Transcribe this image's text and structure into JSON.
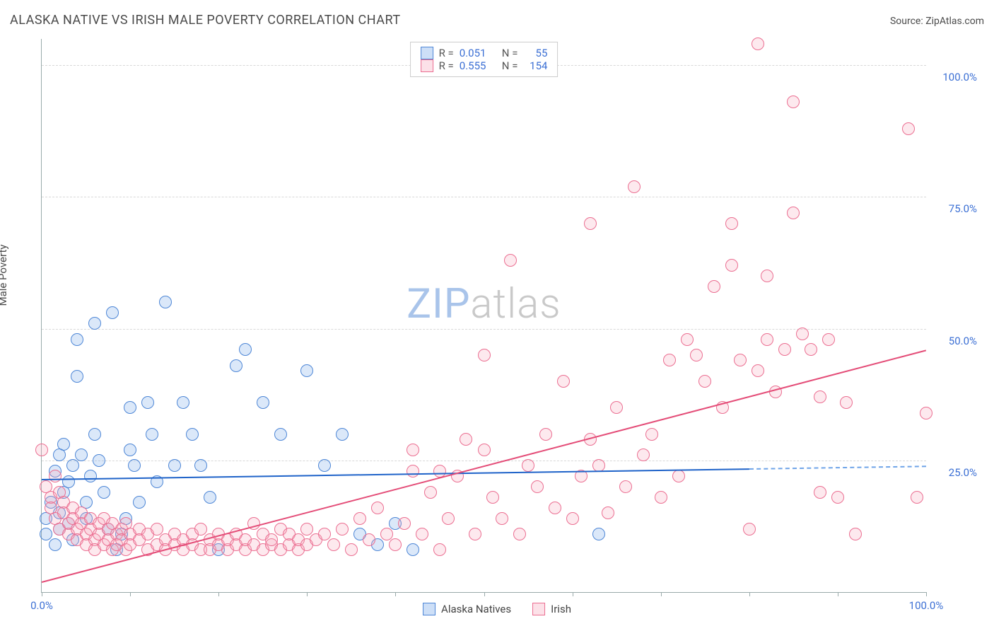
{
  "header": {
    "title": "ALASKA NATIVE VS IRISH MALE POVERTY CORRELATION CHART",
    "source_prefix": "Source: ",
    "source_name": "ZipAtlas.com"
  },
  "chart": {
    "type": "scatter",
    "ylabel": "Male Poverty",
    "background_color": "#ffffff",
    "grid_color": "#d8d8d8",
    "axis_color": "#99aaaa",
    "xlim": [
      0,
      100
    ],
    "ylim": [
      0,
      105
    ],
    "ytick_step": 25,
    "ytick_labels": [
      "25.0%",
      "50.0%",
      "75.0%",
      "100.0%"
    ],
    "ytick_values": [
      25,
      50,
      75,
      100
    ],
    "ytick_color": "#3b6fd4",
    "xtick_step": 10,
    "xtick_labels": {
      "0": "0.0%",
      "100": "100.0%"
    },
    "xtick_label_color": "#3b6fd4",
    "marker_radius": 9,
    "marker_stroke_width": 1.5,
    "marker_fill_opacity": 0.25,
    "series": [
      {
        "key": "alaska",
        "label": "Alaska Natives",
        "color": "#6fa4e8",
        "stroke": "#4d86d6",
        "trend": {
          "x1": 0,
          "y1": 21.5,
          "x2": 100,
          "y2": 24,
          "solid_to_x": 80,
          "color": "#1f63c9",
          "width": 2.5,
          "dash_color": "#6fa4e8"
        },
        "R": "0.051",
        "N": "55",
        "points": [
          [
            0.5,
            14
          ],
          [
            0.5,
            11
          ],
          [
            1,
            17
          ],
          [
            1.5,
            23
          ],
          [
            1.5,
            9
          ],
          [
            2,
            12
          ],
          [
            2,
            15
          ],
          [
            2,
            26
          ],
          [
            2.5,
            28
          ],
          [
            2.5,
            19
          ],
          [
            3,
            13
          ],
          [
            3,
            21
          ],
          [
            3.5,
            10
          ],
          [
            3.5,
            24
          ],
          [
            4,
            48
          ],
          [
            4,
            41
          ],
          [
            4.5,
            26
          ],
          [
            5,
            14
          ],
          [
            5,
            17
          ],
          [
            5.5,
            22
          ],
          [
            6,
            51
          ],
          [
            6,
            30
          ],
          [
            6.5,
            25
          ],
          [
            7,
            19
          ],
          [
            7.5,
            12
          ],
          [
            8,
            53
          ],
          [
            8.5,
            8
          ],
          [
            9,
            11
          ],
          [
            9.5,
            14
          ],
          [
            10,
            27
          ],
          [
            10,
            35
          ],
          [
            10.5,
            24
          ],
          [
            11,
            17
          ],
          [
            12,
            36
          ],
          [
            12.5,
            30
          ],
          [
            13,
            21
          ],
          [
            14,
            55
          ],
          [
            15,
            24
          ],
          [
            16,
            36
          ],
          [
            17,
            30
          ],
          [
            18,
            24
          ],
          [
            19,
            18
          ],
          [
            20,
            8
          ],
          [
            22,
            43
          ],
          [
            23,
            46
          ],
          [
            25,
            36
          ],
          [
            27,
            30
          ],
          [
            30,
            42
          ],
          [
            32,
            24
          ],
          [
            34,
            30
          ],
          [
            36,
            11
          ],
          [
            38,
            9
          ],
          [
            40,
            13
          ],
          [
            42,
            8
          ],
          [
            63,
            11
          ]
        ]
      },
      {
        "key": "irish",
        "label": "Irish",
        "color": "#f7a8bc",
        "stroke": "#eb6e91",
        "trend": {
          "x1": 0,
          "y1": 2,
          "x2": 100,
          "y2": 46,
          "solid_to_x": 100,
          "color": "#e44d78",
          "width": 2.5
        },
        "R": "0.555",
        "N": "154",
        "points": [
          [
            0,
            27
          ],
          [
            0.5,
            20
          ],
          [
            1,
            18
          ],
          [
            1,
            16
          ],
          [
            1.5,
            22
          ],
          [
            1.5,
            14
          ],
          [
            2,
            19
          ],
          [
            2,
            12
          ],
          [
            2.5,
            17
          ],
          [
            2.5,
            15
          ],
          [
            3,
            13
          ],
          [
            3,
            11
          ],
          [
            3.5,
            16
          ],
          [
            3.5,
            14
          ],
          [
            4,
            12
          ],
          [
            4,
            10
          ],
          [
            4.5,
            15
          ],
          [
            4.5,
            13
          ],
          [
            5,
            11
          ],
          [
            5,
            9
          ],
          [
            5.5,
            14
          ],
          [
            5.5,
            12
          ],
          [
            6,
            10
          ],
          [
            6,
            8
          ],
          [
            6.5,
            13
          ],
          [
            6.5,
            11
          ],
          [
            7,
            9
          ],
          [
            7,
            14
          ],
          [
            7.5,
            12
          ],
          [
            7.5,
            10
          ],
          [
            8,
            8
          ],
          [
            8,
            13
          ],
          [
            8.5,
            11
          ],
          [
            8.5,
            9
          ],
          [
            9,
            12
          ],
          [
            9,
            10
          ],
          [
            9.5,
            8
          ],
          [
            9.5,
            13
          ],
          [
            10,
            11
          ],
          [
            10,
            9
          ],
          [
            11,
            12
          ],
          [
            11,
            10
          ],
          [
            12,
            8
          ],
          [
            12,
            11
          ],
          [
            13,
            9
          ],
          [
            13,
            12
          ],
          [
            14,
            10
          ],
          [
            14,
            8
          ],
          [
            15,
            11
          ],
          [
            15,
            9
          ],
          [
            16,
            10
          ],
          [
            16,
            8
          ],
          [
            17,
            11
          ],
          [
            17,
            9
          ],
          [
            18,
            8
          ],
          [
            18,
            12
          ],
          [
            19,
            10
          ],
          [
            19,
            8
          ],
          [
            20,
            9
          ],
          [
            20,
            11
          ],
          [
            21,
            8
          ],
          [
            21,
            10
          ],
          [
            22,
            9
          ],
          [
            22,
            11
          ],
          [
            23,
            8
          ],
          [
            23,
            10
          ],
          [
            24,
            9
          ],
          [
            24,
            13
          ],
          [
            25,
            8
          ],
          [
            25,
            11
          ],
          [
            26,
            9
          ],
          [
            26,
            10
          ],
          [
            27,
            8
          ],
          [
            27,
            12
          ],
          [
            28,
            9
          ],
          [
            28,
            11
          ],
          [
            29,
            8
          ],
          [
            29,
            10
          ],
          [
            30,
            9
          ],
          [
            30,
            12
          ],
          [
            31,
            10
          ],
          [
            32,
            11
          ],
          [
            33,
            9
          ],
          [
            34,
            12
          ],
          [
            35,
            8
          ],
          [
            36,
            14
          ],
          [
            37,
            10
          ],
          [
            38,
            16
          ],
          [
            39,
            11
          ],
          [
            40,
            9
          ],
          [
            41,
            13
          ],
          [
            42,
            23
          ],
          [
            42,
            27
          ],
          [
            43,
            11
          ],
          [
            44,
            19
          ],
          [
            45,
            8
          ],
          [
            45,
            23
          ],
          [
            46,
            14
          ],
          [
            47,
            22
          ],
          [
            48,
            29
          ],
          [
            49,
            11
          ],
          [
            50,
            27
          ],
          [
            50,
            45
          ],
          [
            51,
            18
          ],
          [
            52,
            14
          ],
          [
            53,
            63
          ],
          [
            54,
            11
          ],
          [
            55,
            24
          ],
          [
            56,
            20
          ],
          [
            57,
            30
          ],
          [
            58,
            16
          ],
          [
            59,
            40
          ],
          [
            60,
            14
          ],
          [
            61,
            22
          ],
          [
            62,
            29
          ],
          [
            62,
            70
          ],
          [
            63,
            24
          ],
          [
            64,
            15
          ],
          [
            65,
            35
          ],
          [
            66,
            20
          ],
          [
            67,
            77
          ],
          [
            68,
            26
          ],
          [
            69,
            30
          ],
          [
            70,
            18
          ],
          [
            71,
            44
          ],
          [
            72,
            22
          ],
          [
            73,
            48
          ],
          [
            74,
            45
          ],
          [
            75,
            40
          ],
          [
            76,
            58
          ],
          [
            77,
            35
          ],
          [
            78,
            62
          ],
          [
            78,
            70
          ],
          [
            79,
            44
          ],
          [
            80,
            12
          ],
          [
            81,
            42
          ],
          [
            81,
            104
          ],
          [
            82,
            60
          ],
          [
            82,
            48
          ],
          [
            83,
            38
          ],
          [
            84,
            46
          ],
          [
            85,
            72
          ],
          [
            85,
            93
          ],
          [
            86,
            49
          ],
          [
            87,
            46
          ],
          [
            88,
            37
          ],
          [
            88,
            19
          ],
          [
            89,
            48
          ],
          [
            90,
            18
          ],
          [
            91,
            36
          ],
          [
            92,
            11
          ],
          [
            98,
            88
          ],
          [
            99,
            18
          ],
          [
            100,
            34
          ]
        ]
      }
    ]
  },
  "legend_top": {
    "R_label": "R =",
    "N_label": "N =",
    "value_color": "#3b6fd4",
    "text_color": "#555555"
  },
  "legend_bottom": {
    "items": [
      "Alaska Natives",
      "Irish"
    ]
  },
  "watermark": {
    "p1": "ZIP",
    "p1_color": "#a9c4ea",
    "p2": "atlas",
    "p2_color": "#c9c9c9"
  }
}
